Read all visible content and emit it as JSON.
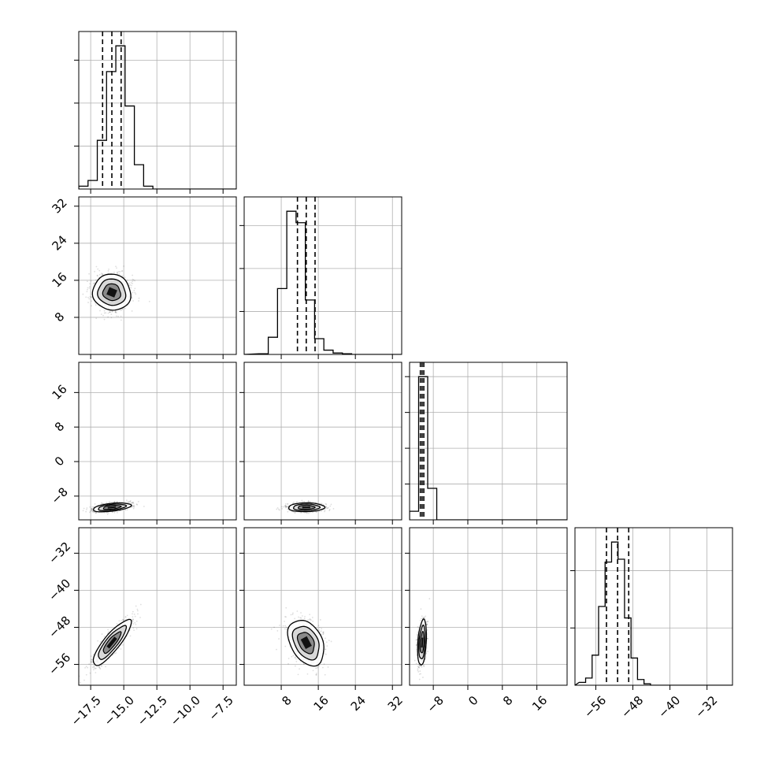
{
  "chart_data": {
    "type": "corner",
    "grid": true,
    "parameters": [
      {
        "range": [
          -18.4,
          -6.5
        ],
        "tick_values": [
          -17.5,
          -15.0,
          -12.5,
          -10.0,
          -7.5
        ],
        "tick_labels": [
          "−17.5",
          "−15.0",
          "−12.5",
          "−10.0",
          "−7.5"
        ],
        "histogram": {
          "bin_edges": [
            -18.4,
            -17.7,
            -17.0,
            -16.3,
            -15.6,
            -14.9,
            -14.2,
            -13.5,
            -12.8
          ],
          "counts": [
            0.02,
            0.06,
            0.34,
            0.82,
            1.0,
            0.58,
            0.17,
            0.02
          ],
          "quantiles": [
            -16.6,
            -15.9,
            -15.2
          ]
        },
        "hist_ylim": [
          0,
          1.1
        ],
        "hist_yticks": [
          0.3,
          0.6,
          0.9
        ]
      },
      {
        "range": [
          0,
          34
        ],
        "tick_values": [
          8,
          16,
          24,
          32
        ],
        "tick_labels": [
          "8",
          "16",
          "24",
          "32"
        ],
        "histogram": {
          "bin_edges": [
            3.2,
            5.2,
            7.2,
            9.2,
            11.2,
            13.2,
            15.2,
            17.2,
            19.2,
            21.2,
            23.2
          ],
          "counts": [
            0.005,
            0.12,
            0.46,
            1.0,
            0.92,
            0.38,
            0.11,
            0.03,
            0.01,
            0.005
          ],
          "quantiles": [
            11.5,
            13.4,
            15.3
          ]
        },
        "hist_ylim": [
          0,
          1.1
        ],
        "hist_yticks": [
          0.3,
          0.6,
          0.9
        ]
      },
      {
        "range": [
          -13.5,
          23.0
        ],
        "tick_values": [
          -8,
          0,
          8,
          16
        ],
        "tick_labels": [
          "−8",
          "0",
          "8",
          "16"
        ],
        "histogram": {
          "bin_edges": [
            -13.5,
            -11.4,
            -9.3,
            -7.2
          ],
          "counts": [
            0.06,
            1.0,
            0.22
          ],
          "quantiles": [
            -11.0,
            -10.6,
            -10.2
          ]
        },
        "hist_ylim": [
          0,
          1.1
        ],
        "hist_yticks": [
          0.25,
          0.5,
          0.75,
          1.0
        ]
      },
      {
        "range": [
          -60.5,
          -26.5
        ],
        "tick_values": [
          -56,
          -48,
          -40,
          -32
        ],
        "tick_labels": [
          "−56",
          "−48",
          "−40",
          "−32"
        ],
        "histogram": {
          "bin_edges": [
            -59.6,
            -58.2,
            -56.8,
            -55.4,
            -54.0,
            -52.6,
            -51.2,
            -49.8,
            -48.4,
            -47.0,
            -45.6,
            -44.2
          ],
          "counts": [
            0.02,
            0.05,
            0.21,
            0.55,
            0.86,
            1.0,
            0.88,
            0.47,
            0.19,
            0.04,
            0.01
          ],
          "quantiles": [
            -53.7,
            -51.3,
            -48.9
          ]
        },
        "hist_ylim": [
          0,
          1.1
        ],
        "hist_yticks": [
          0.4,
          0.8
        ]
      }
    ],
    "pair_distributions": [
      {
        "x_param": 0,
        "y_param": 1,
        "center": [
          -15.9,
          13.4
        ],
        "sigma": [
          0.7,
          1.9
        ],
        "correlation": -0.05
      },
      {
        "x_param": 0,
        "y_param": 2,
        "center": [
          -15.9,
          -10.6
        ],
        "sigma": [
          0.7,
          0.5
        ],
        "correlation": 0.45
      },
      {
        "x_param": 1,
        "y_param": 2,
        "center": [
          13.4,
          -10.6
        ],
        "sigma": [
          1.9,
          0.5
        ],
        "correlation": 0.05
      },
      {
        "x_param": 0,
        "y_param": 3,
        "center": [
          -15.9,
          -51.3
        ],
        "sigma": [
          0.7,
          2.4
        ],
        "correlation": 0.85
      },
      {
        "x_param": 1,
        "y_param": 3,
        "center": [
          13.4,
          -51.3
        ],
        "sigma": [
          1.9,
          2.4
        ],
        "correlation": -0.35
      },
      {
        "x_param": 2,
        "y_param": 3,
        "center": [
          -10.6,
          -51.3
        ],
        "sigma": [
          0.5,
          2.4
        ],
        "correlation": 0.3
      }
    ]
  }
}
